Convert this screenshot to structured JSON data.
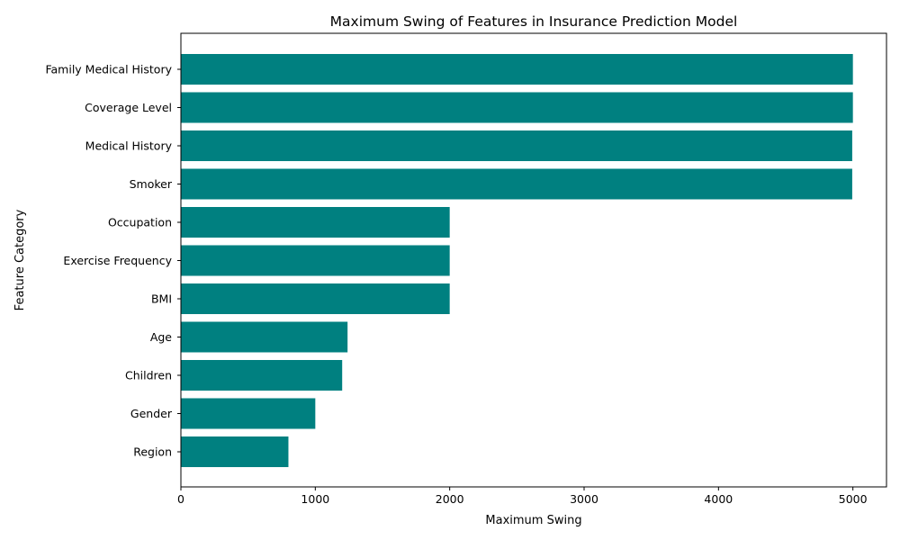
{
  "chart_data": {
    "type": "bar",
    "orientation": "horizontal",
    "title": "Maximum Swing of Features in Insurance Prediction Model",
    "xlabel": "Maximum Swing",
    "ylabel": "Feature Category",
    "categories": [
      "Region",
      "Gender",
      "Children",
      "Age",
      "BMI",
      "Exercise Frequency",
      "Occupation",
      "Smoker",
      "Medical History",
      "Coverage Level",
      "Family Medical History"
    ],
    "values": [
      800,
      1000,
      1200,
      1240,
      2000,
      2000,
      2000,
      4995,
      4995,
      5000,
      5000
    ],
    "xticks": [
      0,
      1000,
      2000,
      3000,
      4000,
      5000
    ],
    "xlim": [
      0,
      5250
    ],
    "bar_color": "#008080",
    "grid": false
  }
}
